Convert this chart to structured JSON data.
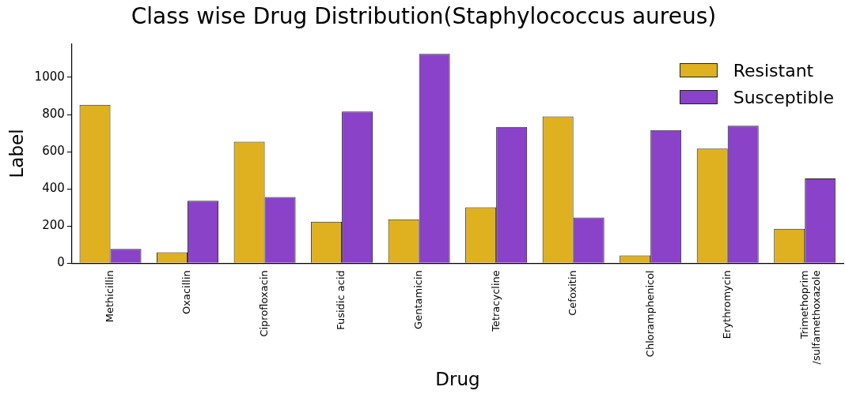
{
  "chart_data": {
    "type": "bar",
    "title": "Class wise Drug Distribution(Staphylococcus aureus)",
    "xlabel": "Drug",
    "ylabel": "Label",
    "categories": [
      "Methicillin",
      "Oxacillin",
      "Ciprofloxacin",
      "Fusidic acid",
      "Gentamicin",
      "Tetracycline",
      "Cefoxitin",
      "Chloramphenicol",
      "Erythromycin",
      "Trimethoprim\n/sulfamethoxazole"
    ],
    "series": [
      {
        "name": "Resistant",
        "color": "#dfb121",
        "values": [
          852,
          58,
          653,
          223,
          236,
          301,
          789,
          41,
          616,
          185
        ]
      },
      {
        "name": "Susceptible",
        "color": "#8a42c9",
        "values": [
          76,
          336,
          356,
          816,
          1126,
          733,
          245,
          716,
          739,
          456
        ]
      }
    ],
    "ylim": [
      0,
      1180
    ],
    "yticks": [
      0,
      200,
      400,
      600,
      800,
      1000
    ],
    "grid": false,
    "legend": "top right"
  }
}
